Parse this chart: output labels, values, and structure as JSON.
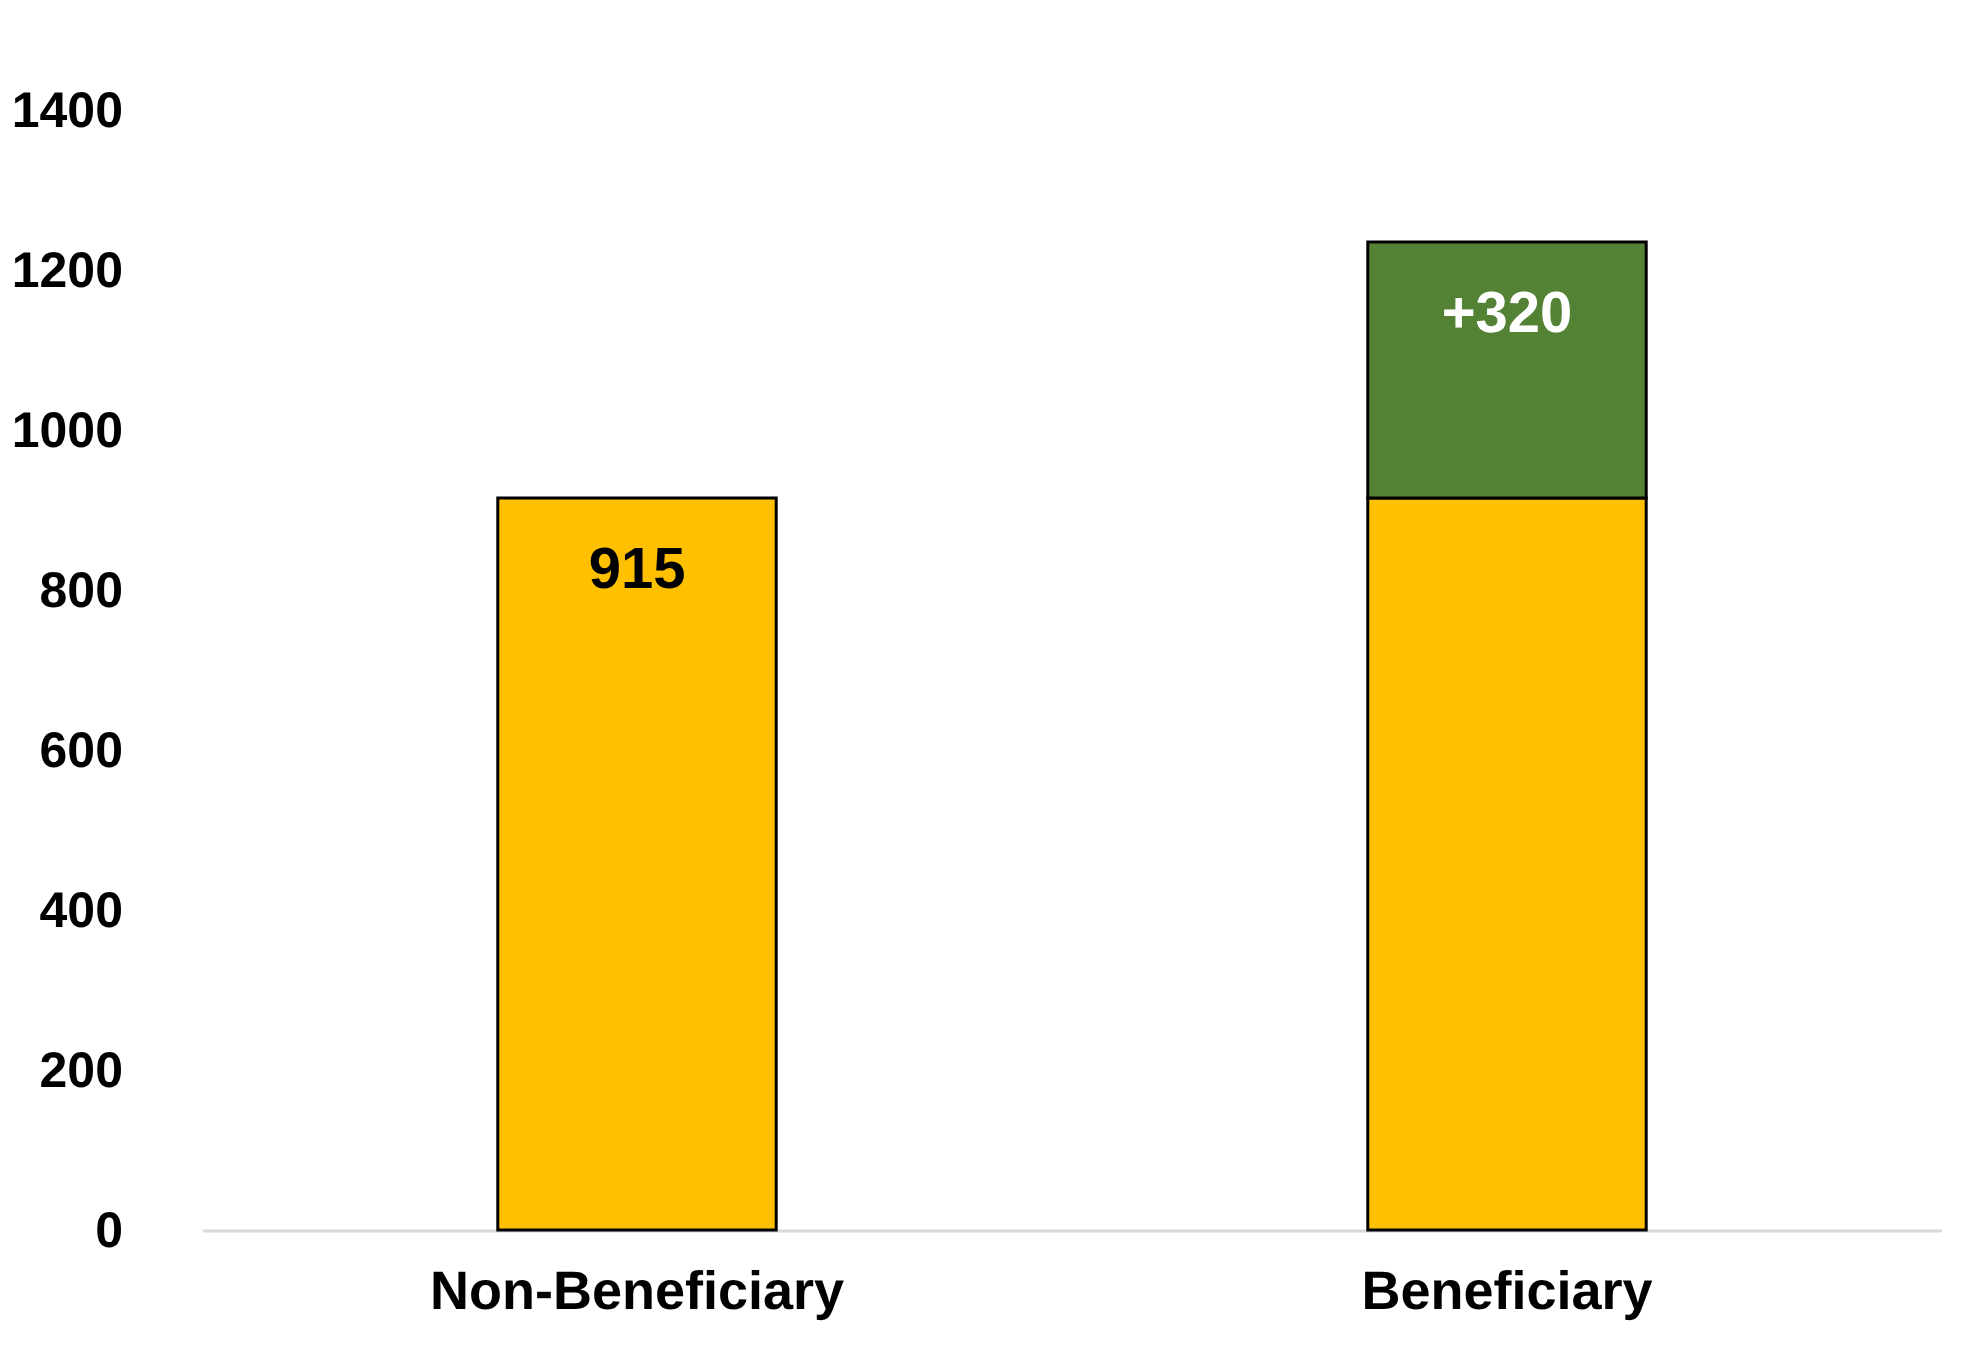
{
  "chart_data": {
    "type": "bar",
    "stacked": true,
    "categories": [
      "Non-Beneficiary",
      "Beneficiary"
    ],
    "series": [
      {
        "color": "#ffc000",
        "values": [
          915,
          915
        ],
        "value_labels": [
          "915",
          null
        ]
      },
      {
        "color": "#548235",
        "values": [
          null,
          320
        ],
        "value_labels": [
          null,
          "+320"
        ]
      }
    ],
    "ylim": [
      0,
      1400
    ],
    "yticks": [
      0,
      200,
      400,
      600,
      800,
      1000,
      1200,
      1400
    ],
    "grid": false
  }
}
